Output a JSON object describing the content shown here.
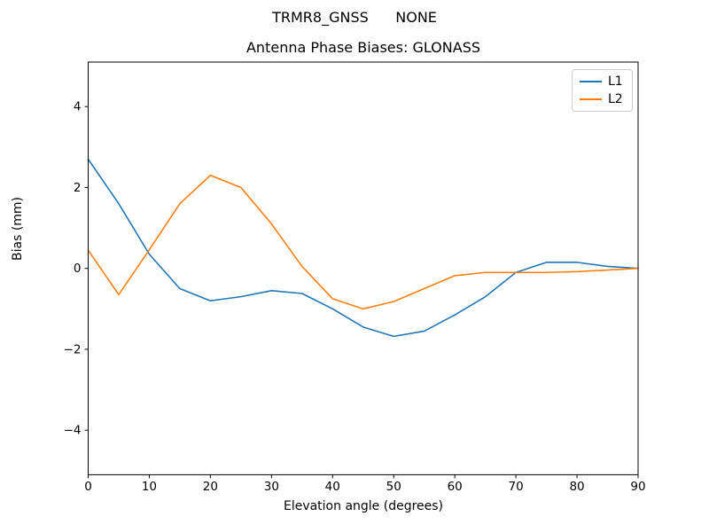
{
  "chart_data": {
    "type": "line",
    "title": "TRMR8_GNSS      NONE",
    "subtitle": "Antenna Phase Biases: GLONASS",
    "xlabel": "Elevation angle (degrees)",
    "ylabel": "Bias (mm)",
    "x": [
      0,
      5,
      10,
      15,
      20,
      25,
      30,
      35,
      40,
      45,
      50,
      55,
      60,
      65,
      70,
      75,
      80,
      85,
      90
    ],
    "series": [
      {
        "name": "L1",
        "color": "#1f77b4",
        "values": [
          2.7,
          1.6,
          0.35,
          -0.5,
          -0.8,
          -0.7,
          -0.55,
          -0.62,
          -1.0,
          -1.45,
          -1.68,
          -1.55,
          -1.15,
          -0.7,
          -0.1,
          0.15,
          0.15,
          0.05,
          0.0
        ]
      },
      {
        "name": "L2",
        "color": "#ff7f0e",
        "values": [
          0.45,
          -0.65,
          0.46,
          1.6,
          2.3,
          2.0,
          1.1,
          0.05,
          -0.75,
          -1.0,
          -0.82,
          -0.5,
          -0.18,
          -0.1,
          -0.1,
          -0.1,
          -0.08,
          -0.04,
          0.0
        ]
      }
    ],
    "xlim": [
      0,
      90
    ],
    "ylim": [
      -5.1,
      5.1
    ],
    "x_ticks": [
      0,
      10,
      20,
      30,
      40,
      50,
      60,
      70,
      80,
      90
    ],
    "x_tick_labels": [
      "0",
      "10",
      "20",
      "30",
      "40",
      "50",
      "60",
      "70",
      "80",
      "90"
    ],
    "y_ticks": [
      -4,
      -2,
      0,
      2,
      4
    ],
    "y_tick_labels": [
      "−4",
      "−2",
      "0",
      "2",
      "4"
    ],
    "grid": false,
    "legend_position": "upper right",
    "frame_color": "#000000",
    "tick_label_color": "#000000"
  }
}
